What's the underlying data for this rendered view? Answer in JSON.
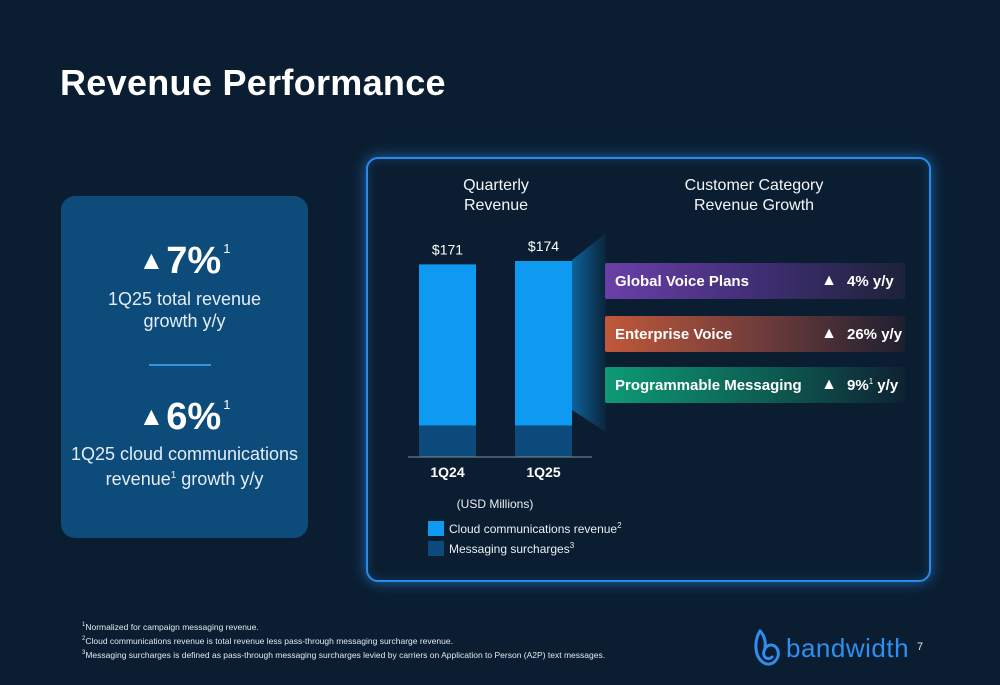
{
  "page": {
    "title": "Revenue Performance",
    "page_number": "7"
  },
  "highlights": [
    {
      "triangle": "▲",
      "value": "7%",
      "note": "1",
      "desc_line1": "1Q25 total revenue",
      "desc_line2": "growth y/y"
    },
    {
      "triangle": "▲",
      "value": "6%",
      "note": "1",
      "desc_line1": "1Q25 cloud communications",
      "desc_line2_a": "revenue",
      "desc_line2_note": "1",
      "desc_line2_b": " growth y/y"
    }
  ],
  "chart_titles": {
    "quarterly_line1": "Quarterly",
    "quarterly_line2": "Revenue",
    "customer_line1": "Customer Category",
    "customer_line2": "Revenue Growth"
  },
  "chart_data": {
    "type": "bar",
    "stacked": true,
    "categories": [
      "1Q24",
      "1Q25"
    ],
    "series": [
      {
        "name": "Cloud communications revenue",
        "note": "2",
        "values": [
          143,
          146
        ],
        "color": "#0d9af0"
      },
      {
        "name": "Messaging surcharges",
        "note": "3",
        "values": [
          28,
          28
        ],
        "color": "#0c4a7c"
      }
    ],
    "totals": [
      171,
      174
    ],
    "total_labels": [
      "$171",
      "$174"
    ],
    "unit_note": "(USD Millions)",
    "ylim": [
      0,
      174
    ]
  },
  "growth": [
    {
      "name": "Global Voice Plans",
      "triangle": "▲",
      "value": "4% y/y",
      "gradient_start": "#6a3fa8",
      "gradient_end": "#1d2238"
    },
    {
      "name": "Enterprise Voice",
      "triangle": "▲",
      "value": "26% y/y",
      "gradient_start": "#c0583a",
      "gradient_end": "#1e2030"
    },
    {
      "name": "Programmable Messaging",
      "triangle": "▲",
      "value_a": "9%",
      "value_note": "1",
      "value_b": " y/y",
      "gradient_start": "#0d9a74",
      "gradient_end": "#0e2232"
    }
  ],
  "footnotes": [
    {
      "num": "1",
      "text": "Normalized for campaign messaging revenue."
    },
    {
      "num": "2",
      "text": "Cloud communications revenue is total revenue less pass-through messaging surcharge revenue."
    },
    {
      "num": "3",
      "text": "Messaging surcharges is defined as pass-through messaging surcharges levied by carriers on Application to Person (A2P) text messages."
    }
  ],
  "logo": {
    "text": "bandwidth",
    "icon": "bandwidth-logo-icon"
  }
}
